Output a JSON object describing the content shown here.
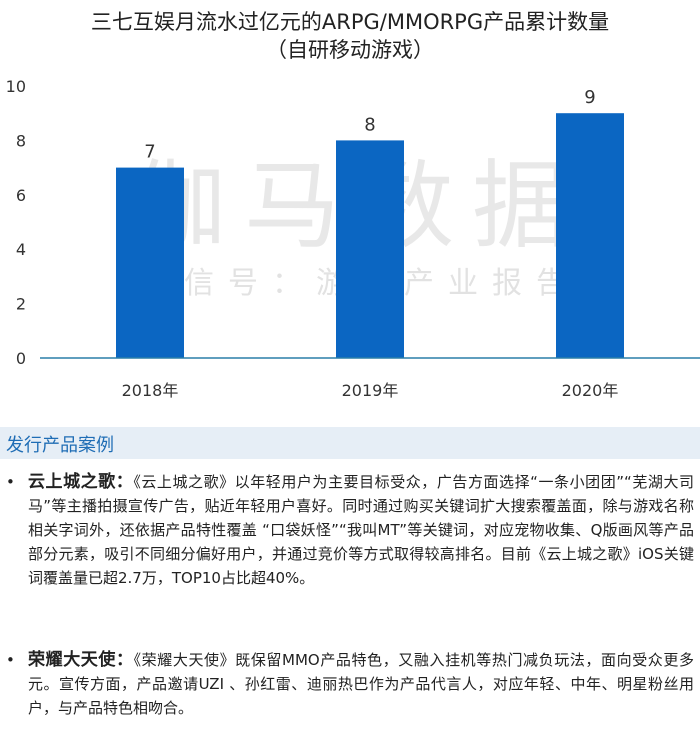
{
  "colors": {
    "bar": "#0b66c2",
    "axis": "#2a7fa8",
    "header_bg": "#e6eef6",
    "header_text": "#1f6db5"
  },
  "watermark": {
    "main": "伽马数据",
    "sub": "微信号：游戏产业报告"
  },
  "chart_data": {
    "type": "bar",
    "title": "三七互娱月流水过亿元的ARPG/MMORPG产品累计数量",
    "subtitle": "（自研移动游戏）",
    "categories": [
      "2018年",
      "2019年",
      "2020年"
    ],
    "values": [
      7,
      8,
      9
    ],
    "ylim": [
      0,
      10
    ],
    "yticks": [
      0,
      2,
      4,
      6,
      8,
      10
    ],
    "xlabel": "",
    "ylabel": "",
    "grid": false,
    "legend": "none"
  },
  "section": {
    "title": "发行产品案例"
  },
  "cases": [
    {
      "bullet": "•",
      "name": "云上城之歌：",
      "text": "《云上城之歌》以年轻用户为主要目标受众，广告方面选择“一条小团团”“芜湖大司马”等主播拍摄宣传广告，贴近年轻用户喜好。同时通过购买关键词扩大搜索覆盖面，除与游戏名称相关字词外，还依据产品特性覆盖 “口袋妖怪”“我叫MT”等关键词，对应宠物收集、Q版画风等产品部分元素，吸引不同细分偏好用户，并通过竞价等方式取得较高排名。目前《云上城之歌》iOS关键词覆盖量已超2.7万，TOP10占比超40%。"
    },
    {
      "bullet": "•",
      "name": "荣耀大天使：",
      "text": "《荣耀大天使》既保留MMO产品特色，又融入挂机等热门减负玩法，面向受众更多元。宣传方面，产品邀请UZI 、孙红雷、迪丽热巴作为产品代言人，对应年轻、中年、明星粉丝用户，与产品特色相吻合。"
    }
  ]
}
